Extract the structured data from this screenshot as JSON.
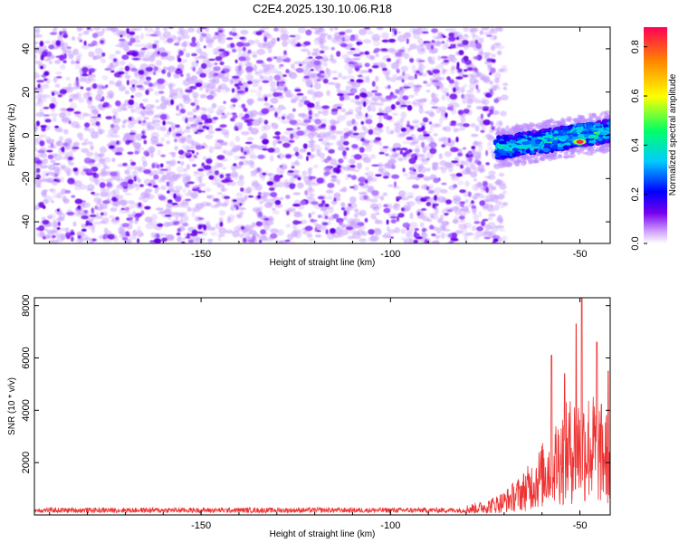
{
  "title": "C2E4.2025.130.10.06.R18",
  "chart_data": [
    {
      "type": "heatmap",
      "xlabel": "Height of straight line (km)",
      "ylabel": "Frequency (Hz)",
      "xlim": [
        -194,
        -42
      ],
      "ylim": [
        -50,
        50
      ],
      "x_ticks": [
        -150,
        -100,
        -50
      ],
      "y_ticks": [
        -40,
        -20,
        0,
        20,
        40
      ],
      "grid": false,
      "noise_region": {
        "x": [
          -194,
          -72
        ],
        "y": [
          -50,
          50
        ]
      },
      "signal_track": {
        "x_start": -72,
        "x_end": -42,
        "freq_center": [
          -6,
          2
        ],
        "freq_halfwidth": 5,
        "peak_amplitude": 0.85,
        "peak_x": -50,
        "peak_freq": -3
      },
      "colorbar": {
        "label": "Normalized spectral amplitude",
        "range": [
          0.0,
          0.88
        ],
        "ticks": [
          0.0,
          0.2,
          0.4,
          0.6,
          0.8
        ],
        "colormap": [
          "#ffffff",
          "#cc99ff",
          "#7700ee",
          "#0000ff",
          "#00ccff",
          "#00ff66",
          "#ffff00",
          "#ff8800",
          "#ff0055"
        ]
      }
    },
    {
      "type": "line",
      "xlabel": "Height of straight line (km)",
      "ylabel": "SNR (10 * v/v)",
      "xlim": [
        -194,
        -42
      ],
      "ylim": [
        0,
        8300
      ],
      "x_ticks": [
        -150,
        -100,
        -50
      ],
      "y_ticks": [
        2000,
        4000,
        6000,
        8000
      ],
      "color": "#ee3333",
      "grid": false,
      "profile_x": [
        -194,
        -80,
        -75,
        -70,
        -66,
        -63,
        -60,
        -58,
        -55,
        -52,
        -50,
        -48,
        -46,
        -44,
        -42
      ],
      "profile_mean": [
        200,
        210,
        300,
        500,
        800,
        1100,
        1500,
        1800,
        2200,
        2500,
        2600,
        2600,
        2500,
        2300,
        2100
      ],
      "peaks": [
        {
          "x": -49.5,
          "y": 8300
        },
        {
          "x": -51,
          "y": 7300
        },
        {
          "x": -57.5,
          "y": 6100
        },
        {
          "x": -45.5,
          "y": 6600
        },
        {
          "x": -54,
          "y": 5400
        },
        {
          "x": -42.5,
          "y": 5500
        }
      ]
    }
  ]
}
